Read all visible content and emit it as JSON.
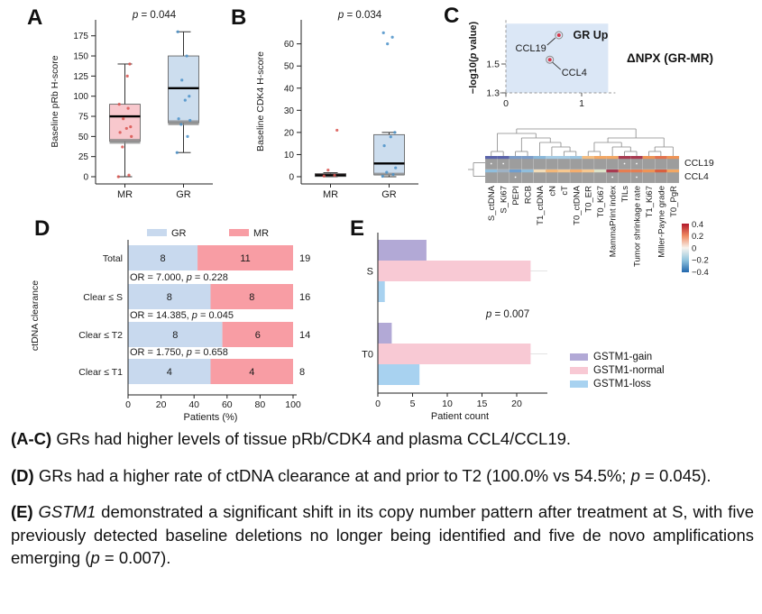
{
  "panels": {
    "a_letter": "A",
    "b_letter": "B",
    "c_letter": "C",
    "d_letter": "D",
    "e_letter": "E"
  },
  "labels": {
    "dnpx": "ΔNPX (GR-MR)"
  },
  "chart_data": [
    {
      "panel": "A",
      "type": "boxplot",
      "title": "p = 0.044",
      "ylabel": "Baseline pRb H-score",
      "categories": [
        "MR",
        "GR"
      ],
      "ylim": [
        0,
        187
      ],
      "yticks": [
        0,
        25,
        50,
        75,
        100,
        125,
        150,
        175
      ],
      "series": [
        {
          "label": "MR",
          "box_color": "#f8c8cd",
          "point_color": "#d9534f",
          "whisker_low": 0,
          "q1": 44,
          "median": 75,
          "q3": 90,
          "whisker_high": 140,
          "gray_band": [
            41,
            47
          ],
          "points": [
            0,
            2,
            37,
            50,
            55,
            60,
            62,
            72,
            85,
            90,
            125,
            140
          ]
        },
        {
          "label": "GR",
          "box_color": "#ccddee",
          "point_color": "#4a90c8",
          "whisker_low": 30,
          "q1": 67,
          "median": 110,
          "q3": 150,
          "whisker_high": 180,
          "gray_band": [
            64,
            70
          ],
          "points": [
            30,
            50,
            65,
            70,
            72,
            95,
            100,
            120,
            150,
            180
          ]
        }
      ]
    },
    {
      "panel": "B",
      "type": "boxplot",
      "title": "p = 0.034",
      "ylabel": "Baseline CDK4 H-score",
      "categories": [
        "MR",
        "GR"
      ],
      "ylim": [
        0,
        68
      ],
      "yticks": [
        0,
        10,
        20,
        30,
        40,
        50,
        60
      ],
      "series": [
        {
          "label": "MR",
          "box_color": "#f8c8cd",
          "point_color": "#d9534f",
          "whisker_low": 0,
          "q1": 0.1,
          "median": 0.7,
          "q3": 1.4,
          "whisker_high": 1.8,
          "gray_band": [
            0,
            0.8
          ],
          "points": [
            0.3,
            0.6,
            3,
            21
          ]
        },
        {
          "label": "GR",
          "box_color": "#ccddee",
          "point_color": "#4a90c8",
          "whisker_low": 0,
          "q1": 0.9,
          "median": 6,
          "q3": 19,
          "whisker_high": 20,
          "gray_band": [
            0.5,
            1.8
          ],
          "points": [
            0.2,
            1,
            2,
            4,
            14,
            18,
            20,
            60,
            63,
            65
          ]
        }
      ]
    },
    {
      "panel": "C",
      "type": "scatter",
      "ylabel": "−log10(p value)",
      "region_label": "GR Up",
      "region_label_color": "#8c96e0",
      "region_color": "#dbe7f6",
      "xlim": [
        0,
        1.35
      ],
      "ylim": [
        1.3,
        1.78
      ],
      "xticks": [
        0,
        1
      ],
      "yticks": [
        1.3,
        1.5
      ],
      "points": [
        {
          "name": "CCL19",
          "x": 0.7,
          "y": 1.7
        },
        {
          "name": "CCL4",
          "x": 0.58,
          "y": 1.53
        }
      ],
      "point_fill": "#d5374a",
      "point_ring": "#8a8a8a"
    },
    {
      "panel": "C",
      "type": "heatmap",
      "rows": [
        "CCL19",
        "CCL4"
      ],
      "columns": [
        "S_ctDNA",
        "S_Ki67",
        "PEPI",
        "RCB",
        "T1_ctDNA",
        "cN",
        "cT",
        "T0_ctDNA",
        "T0_ER",
        "T0_Ki67",
        "MammaPrint index",
        "TILs",
        "Tumor shrinkage rate",
        "T1_Ki67",
        "Miller-Payne grade",
        "T0_PgR"
      ],
      "cell_color": "#9d9d9d",
      "stripe_colors": [
        [
          "#5a64ab",
          "#5a64ab",
          "#7b9cc9",
          "#7b9cc9",
          "#8ab8da",
          "#a6cce5",
          "#a6cce5",
          "#9cc6e2",
          "#f5bd80",
          "#f3a763",
          "#f3a763",
          "#a93a50",
          "#a93a50",
          "#ef9355",
          "#e3724d",
          "#ef9355"
        ],
        [
          "#90bedd",
          "#9fb2c4",
          "#6f9fd0",
          "#90bedd",
          "#f3ddb8",
          "#f5b878",
          "#f7c890",
          "#f5ae6e",
          "#f7c890",
          "#dde3c9",
          "#a93a50",
          "#e57e52",
          "#e57e52",
          "#ef9355",
          "#d9603f",
          "#f3a763"
        ]
      ],
      "dots": [
        [
          0,
          1,
          11,
          12
        ],
        [
          2,
          10,
          12
        ]
      ],
      "tree": [
        [
          [
            0,
            1
          ],
          [
            [
              2,
              3
            ],
            [
              4,
              [
                5,
                [
                  6,
                  7
                ]
              ]
            ]
          ]
        ],
        [
          [
            [
              8,
              9
            ],
            [
              10,
              [
                11,
                12
              ]
            ]
          ],
          [
            [
              13,
              14
            ],
            15
          ]
        ]
      ],
      "colorbar": {
        "ticks": [
          "0.4",
          "0.2",
          "0",
          "−0.2",
          "−0.4"
        ],
        "top_color": "#b2182b",
        "upper_color": "#ef8a62",
        "mid_color": "#f7f3ee",
        "lower_color": "#92c5de",
        "bottom_color": "#2166ac"
      }
    },
    {
      "panel": "D",
      "type": "stacked_bar",
      "legend": [
        {
          "label": "GR",
          "color": "#c8d9ee"
        },
        {
          "label": "MR",
          "color": "#f89da4"
        }
      ],
      "ylabel": "ctDNA clearance",
      "xlabel": "Patients (%)",
      "xticks": [
        0,
        20,
        40,
        60,
        80,
        100
      ],
      "rows": [
        {
          "label": "Total",
          "gr": 8,
          "mr": 11,
          "total": 19,
          "or_text": ""
        },
        {
          "label": "Clear ≤ S",
          "gr": 8,
          "mr": 8,
          "total": 16,
          "or_text": "OR = 7.000, p = 0.228"
        },
        {
          "label": "Clear ≤ T2",
          "gr": 8,
          "mr": 6,
          "total": 14,
          "or_text": "OR = 14.385, p = 0.045"
        },
        {
          "label": "Clear ≤ T1",
          "gr": 4,
          "mr": 4,
          "total": 8,
          "or_text": "OR = 1.750, p = 0.658"
        }
      ]
    },
    {
      "panel": "E",
      "type": "grouped_bar",
      "xlabel": "Patient count",
      "xticks": [
        0,
        5,
        10,
        15,
        20
      ],
      "xlim": [
        0,
        22.5
      ],
      "p_label": "p = 0.007",
      "groups": [
        {
          "label": "S",
          "values": [
            7,
            22,
            1
          ]
        },
        {
          "label": "T0",
          "values": [
            2,
            22,
            6
          ]
        }
      ],
      "series": [
        {
          "label": "GSTM1-gain",
          "color": "#b2a9d6"
        },
        {
          "label": "GSTM1-normal",
          "color": "#f8c9d4"
        },
        {
          "label": "GSTM1-loss",
          "color": "#a8d2f0"
        }
      ]
    }
  ],
  "caption": {
    "paragraphs": [
      {
        "justify": false,
        "segments": [
          {
            "t": "(A-C)",
            "b": true
          },
          {
            "t": " GRs had higher levels of tissue pRb/CDK4 and plasma CCL4/CCL19."
          }
        ]
      },
      {
        "justify": true,
        "segments": [
          {
            "t": "(D)",
            "b": true
          },
          {
            "t": " GRs had a higher rate of ctDNA clearance at and prior to T2 (100.0% vs 54.5%; "
          },
          {
            "t": "p",
            "i": true
          },
          {
            "t": " = 0.045)."
          }
        ]
      },
      {
        "justify": true,
        "segments": [
          {
            "t": "(E)",
            "b": true
          },
          {
            "t": " "
          },
          {
            "t": "GSTM1",
            "i": true
          },
          {
            "t": " demonstrated a significant shift in its copy number pattern after treatment at S, with five previously detected baseline deletions no longer being identified and five de novo amplifications emerging ("
          },
          {
            "t": "p",
            "i": true
          },
          {
            "t": " = 0.007)."
          }
        ]
      }
    ]
  }
}
